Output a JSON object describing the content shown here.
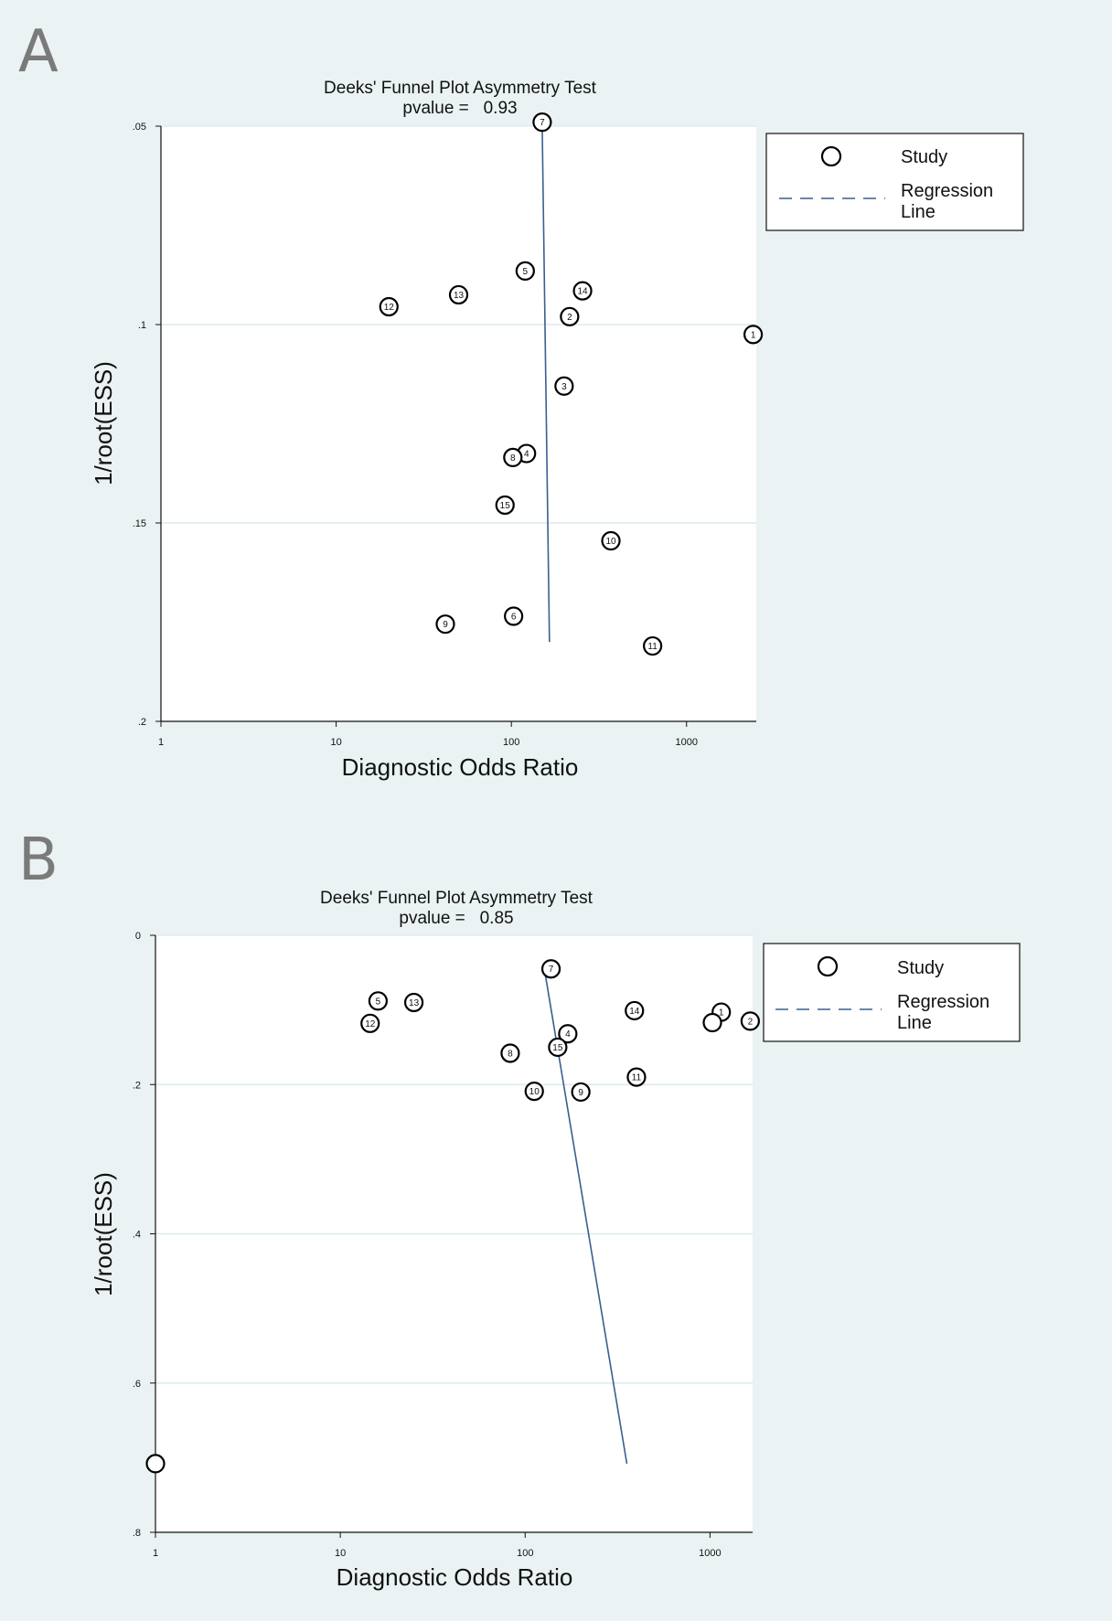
{
  "panels": [
    {
      "letter": "A",
      "chart_data": {
        "type": "scatter",
        "title": "Deeks' Funnel Plot Asymmetry Test",
        "subtitle": "pvalue =   0.93",
        "xlabel": "Diagnostic Odds Ratio",
        "ylabel": "1/root(ESS)",
        "xscale": "log",
        "xlim": [
          1,
          2500
        ],
        "ylim": [
          0.05,
          0.2
        ],
        "y_reversed": true,
        "xticks": [
          1,
          10,
          100,
          1000
        ],
        "xtick_labels": [
          "1",
          "10",
          "100",
          "1000"
        ],
        "yticks": [
          0.05,
          0.1,
          0.15,
          0.2
        ],
        "ytick_labels": [
          ".05",
          ".1",
          ".15",
          ".2"
        ],
        "grid": "horizontal",
        "legend": {
          "position": "right",
          "entries": [
            "Study",
            "Regression\nLine"
          ]
        },
        "points": [
          {
            "label": "1",
            "x": 2400,
            "y": 0.1025
          },
          {
            "label": "2",
            "x": 215,
            "y": 0.098
          },
          {
            "label": "3",
            "x": 200,
            "y": 0.1155
          },
          {
            "label": "4",
            "x": 122,
            "y": 0.1325
          },
          {
            "label": "5",
            "x": 120,
            "y": 0.0865
          },
          {
            "label": "6",
            "x": 103,
            "y": 0.1735
          },
          {
            "label": "7",
            "x": 150,
            "y": 0.049
          },
          {
            "label": "8",
            "x": 102,
            "y": 0.1335
          },
          {
            "label": "9",
            "x": 42,
            "y": 0.1755
          },
          {
            "label": "10",
            "x": 370,
            "y": 0.1545
          },
          {
            "label": "11",
            "x": 640,
            "y": 0.181
          },
          {
            "label": "12",
            "x": 20,
            "y": 0.0955
          },
          {
            "label": "13",
            "x": 50,
            "y": 0.0925
          },
          {
            "label": "14",
            "x": 255,
            "y": 0.0915
          },
          {
            "label": "15",
            "x": 92,
            "y": 0.1455
          }
        ],
        "regression_line": [
          {
            "x": 150,
            "y": 0.05
          },
          {
            "x": 165,
            "y": 0.18
          }
        ]
      }
    },
    {
      "letter": "B",
      "chart_data": {
        "type": "scatter",
        "title": "Deeks' Funnel Plot Asymmetry Test",
        "subtitle": "pvalue =   0.85",
        "xlabel": "Diagnostic Odds Ratio",
        "ylabel": "1/root(ESS)",
        "xscale": "log",
        "xlim": [
          1,
          1700
        ],
        "ylim": [
          0,
          0.8
        ],
        "y_reversed": true,
        "xticks": [
          1,
          10,
          100,
          1000
        ],
        "xtick_labels": [
          "1",
          "10",
          "100",
          "1000"
        ],
        "yticks": [
          0,
          0.2,
          0.4,
          0.6,
          0.8
        ],
        "ytick_labels": [
          "0",
          ".2",
          ".4",
          ".6",
          ".8"
        ],
        "grid": "horizontal",
        "legend": {
          "position": "right",
          "entries": [
            "Study",
            "Regression\nLine"
          ]
        },
        "points": [
          {
            "label": "1",
            "x": 1150,
            "y": 0.103
          },
          {
            "label": "",
            "x": 1030,
            "y": 0.117
          },
          {
            "label": "2",
            "x": 1650,
            "y": 0.115
          },
          {
            "label": "4",
            "x": 170,
            "y": 0.132
          },
          {
            "label": "5",
            "x": 16,
            "y": 0.088
          },
          {
            "label": "",
            "x": 1,
            "y": 0.708
          },
          {
            "label": "7",
            "x": 138,
            "y": 0.045
          },
          {
            "label": "8",
            "x": 83,
            "y": 0.158
          },
          {
            "label": "9",
            "x": 200,
            "y": 0.21
          },
          {
            "label": "10",
            "x": 112,
            "y": 0.209
          },
          {
            "label": "11",
            "x": 400,
            "y": 0.19
          },
          {
            "label": "12",
            "x": 14.5,
            "y": 0.118
          },
          {
            "label": "13",
            "x": 25,
            "y": 0.09
          },
          {
            "label": "14",
            "x": 390,
            "y": 0.101
          },
          {
            "label": "15",
            "x": 150,
            "y": 0.15
          }
        ],
        "regression_line": [
          {
            "x": 128,
            "y": 0.05
          },
          {
            "x": 355,
            "y": 0.708
          }
        ]
      }
    }
  ],
  "colors": {
    "page_background": "#eaf2f3",
    "plot_background": "#ffffff",
    "gridline": "#dce9ee",
    "regression_line": "#3a5f8f",
    "marker": "#000000"
  }
}
